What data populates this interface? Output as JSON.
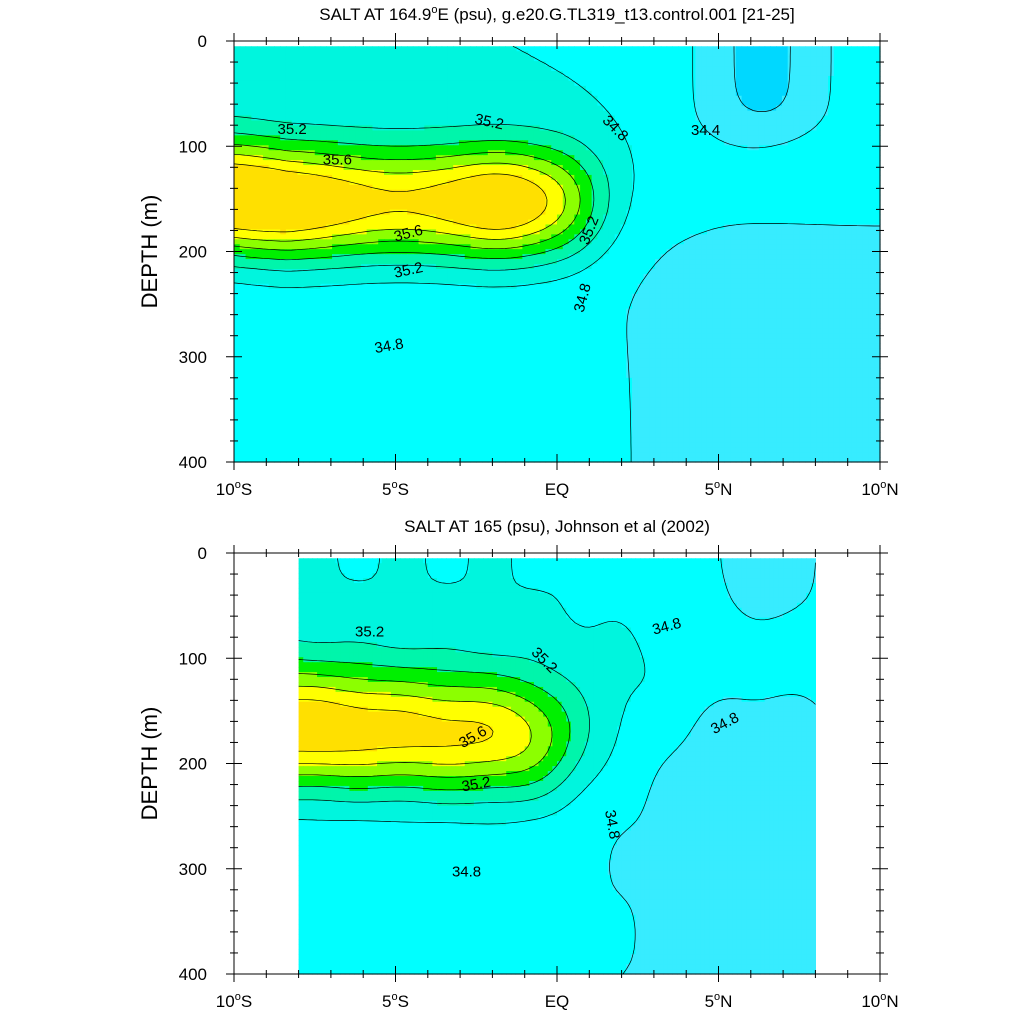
{
  "chart_data": [
    {
      "type": "heatmap",
      "title_pre": "SALT AT 164.9",
      "title_deg": "o",
      "title_post": "E (psu), g.e20.G.TL319_t13.control.001 [21-25]",
      "ylabel": "DEPTH (m)",
      "xlim": [
        -10,
        10
      ],
      "ylim": [
        400,
        0
      ],
      "x_ticks": [
        {
          "value": -10,
          "num": "10",
          "hemi": "S"
        },
        {
          "value": -5,
          "num": "5",
          "hemi": "S"
        },
        {
          "value": 0,
          "num": "",
          "hemi": "EQ"
        },
        {
          "value": 5,
          "num": "5",
          "hemi": "N"
        },
        {
          "value": 10,
          "num": "10",
          "hemi": "N"
        }
      ],
      "y_ticks": [
        0,
        100,
        200,
        300,
        400
      ],
      "data_extent": {
        "lat": [
          -10,
          10
        ],
        "depth": [
          5,
          400
        ]
      },
      "contour_interval": 0.2,
      "contour_labels": [
        {
          "text": "35.2",
          "lat": -8.2,
          "depth": 84,
          "rot": 0
        },
        {
          "text": "35.2",
          "lat": -2.1,
          "depth": 77,
          "rot": 12
        },
        {
          "text": "34.8",
          "lat": 1.8,
          "depth": 83,
          "rot": 45
        },
        {
          "text": "34.4",
          "lat": 4.6,
          "depth": 85,
          "rot": 0
        },
        {
          "text": "35.6",
          "lat": -6.8,
          "depth": 113,
          "rot": 0
        },
        {
          "text": "35.6",
          "lat": -4.6,
          "depth": 183,
          "rot": -15
        },
        {
          "text": "35.2",
          "lat": 1.0,
          "depth": 180,
          "rot": -68
        },
        {
          "text": "35.2",
          "lat": -4.6,
          "depth": 218,
          "rot": -12
        },
        {
          "text": "34.8",
          "lat": 0.8,
          "depth": 244,
          "rot": -75
        },
        {
          "text": "34.8",
          "lat": -5.2,
          "depth": 290,
          "rot": -10
        }
      ]
    },
    {
      "type": "heatmap",
      "title_pre": "SALT AT 165 (psu), Johnson et al (2002)",
      "title_deg": "",
      "title_post": "",
      "ylabel": "DEPTH (m)",
      "xlim": [
        -10,
        10
      ],
      "ylim": [
        400,
        0
      ],
      "x_ticks": [
        {
          "value": -10,
          "num": "10",
          "hemi": "S"
        },
        {
          "value": -5,
          "num": "5",
          "hemi": "S"
        },
        {
          "value": 0,
          "num": "",
          "hemi": "EQ"
        },
        {
          "value": 5,
          "num": "5",
          "hemi": "N"
        },
        {
          "value": 10,
          "num": "10",
          "hemi": "N"
        }
      ],
      "y_ticks": [
        0,
        100,
        200,
        300,
        400
      ],
      "data_extent": {
        "lat": [
          -8,
          8
        ],
        "depth": [
          5,
          400
        ]
      },
      "contour_interval": 0.2,
      "contour_labels": [
        {
          "text": "35.2",
          "lat": -5.8,
          "depth": 75,
          "rot": 0
        },
        {
          "text": "35.2",
          "lat": -0.4,
          "depth": 102,
          "rot": 45
        },
        {
          "text": "34.8",
          "lat": 3.4,
          "depth": 70,
          "rot": -15
        },
        {
          "text": "34.8",
          "lat": 5.2,
          "depth": 162,
          "rot": -28
        },
        {
          "text": "35.6",
          "lat": -2.6,
          "depth": 175,
          "rot": -30
        },
        {
          "text": "35.2",
          "lat": -2.5,
          "depth": 220,
          "rot": -10
        },
        {
          "text": "34.8",
          "lat": 1.7,
          "depth": 258,
          "rot": 80
        },
        {
          "text": "34.8",
          "lat": -2.8,
          "depth": 303,
          "rot": 0
        }
      ]
    }
  ]
}
